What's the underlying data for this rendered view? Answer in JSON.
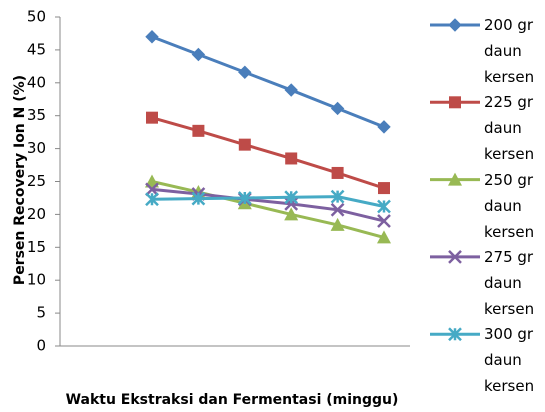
{
  "chart_data": {
    "type": "line",
    "y_label": "Persen Recovery Ion N (%)",
    "x_label": "Waktu Ekstraksi dan Fermentasi (minggu)",
    "categories": [
      null,
      null,
      null,
      null,
      null,
      null
    ],
    "series": [
      {
        "name": "200 gr daun kersen",
        "color": "#4a7ebb",
        "marker": "diamond",
        "values": [
          47.0,
          44.3,
          41.6,
          38.9,
          36.1,
          33.3
        ]
      },
      {
        "name": "225 gr daun kersen",
        "color": "#be4b48",
        "marker": "square",
        "values": [
          34.7,
          32.7,
          30.6,
          28.5,
          26.3,
          24.0
        ]
      },
      {
        "name": "250 gr daun kersen",
        "color": "#98b954",
        "marker": "triangle",
        "values": [
          25.0,
          23.4,
          21.7,
          20.0,
          18.4,
          16.5
        ]
      },
      {
        "name": "275 gr daun kersen",
        "color": "#7d60a0",
        "marker": "x",
        "values": [
          23.8,
          23.1,
          22.3,
          21.6,
          20.7,
          19.0
        ]
      },
      {
        "name": "300 gr daun kersen",
        "color": "#46aac5",
        "marker": "star",
        "values": [
          22.3,
          22.4,
          22.5,
          22.6,
          22.7,
          21.2
        ]
      }
    ],
    "ylim": [
      0,
      50
    ],
    "yticks": [
      0,
      5,
      10,
      15,
      20,
      25,
      30,
      35,
      40,
      45,
      50
    ],
    "legend": "right"
  }
}
